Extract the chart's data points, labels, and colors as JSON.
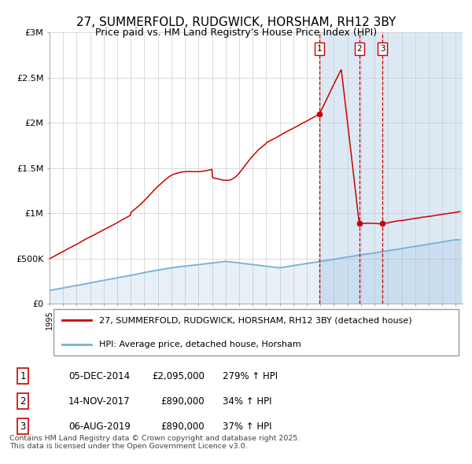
{
  "title": "27, SUMMERFOLD, RUDGWICK, HORSHAM, RH12 3BY",
  "subtitle": "Price paid vs. HM Land Registry's House Price Index (HPI)",
  "title_fontsize": 11,
  "subtitle_fontsize": 9,
  "background_color": "#ffffff",
  "plot_bg_color": "#ffffff",
  "highlight_bg_color": "#dce9f5",
  "grid_color": "#cccccc",
  "red_line_color": "#cc0000",
  "blue_line_color": "#7ab0d4",
  "legend_label_red": "27, SUMMERFOLD, RUDGWICK, HORSHAM, RH12 3BY (detached house)",
  "legend_label_blue": "HPI: Average price, detached house, Horsham",
  "transactions": [
    {
      "label": "1",
      "date": "05-DEC-2014",
      "price": 2095000,
      "hpi_pct": "279% ↑ HPI",
      "x_year": 2014.92
    },
    {
      "label": "2",
      "date": "14-NOV-2017",
      "price": 890000,
      "hpi_pct": "34% ↑ HPI",
      "x_year": 2017.87
    },
    {
      "label": "3",
      "date": "06-AUG-2019",
      "price": 890000,
      "hpi_pct": "37% ↑ HPI",
      "x_year": 2019.59
    }
  ],
  "highlight_start": 2014.92,
  "highlight_end": 2025.5,
  "xmin": 1995.0,
  "xmax": 2025.5,
  "ymin": 0,
  "ymax": 3000000,
  "yticks": [
    0,
    500000,
    1000000,
    1500000,
    2000000,
    2500000,
    3000000
  ],
  "ytick_labels": [
    "£0",
    "£500K",
    "£1M",
    "£1.5M",
    "£2M",
    "£2.5M",
    "£3M"
  ],
  "footer": "Contains HM Land Registry data © Crown copyright and database right 2025.\nThis data is licensed under the Open Government Licence v3.0."
}
